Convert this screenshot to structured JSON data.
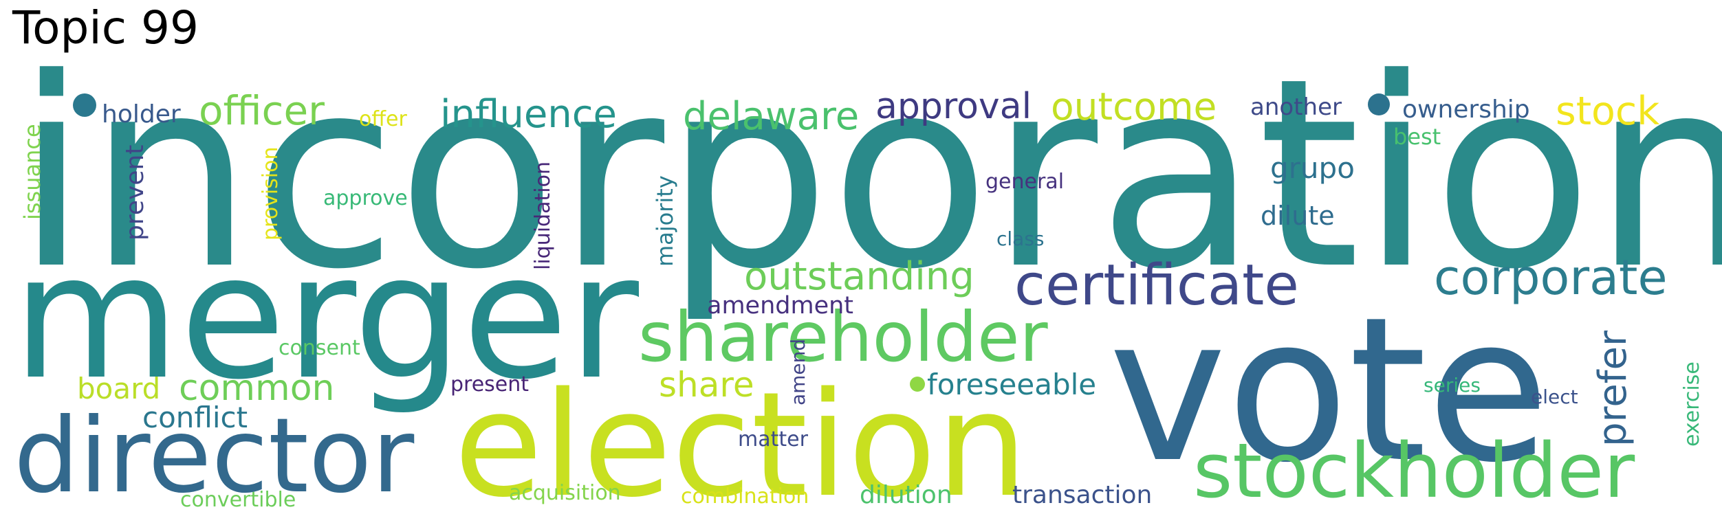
{
  "title": "Topic 99",
  "words": [
    {
      "text": "incorporation",
      "color": "#2a8a8a"
    },
    {
      "text": "merger",
      "color": "#25898b"
    },
    {
      "text": "vote",
      "color": "#31688e"
    },
    {
      "text": "election",
      "color": "#c8e020"
    },
    {
      "text": "director",
      "color": "#33698d"
    },
    {
      "text": "stockholder",
      "color": "#57c665"
    },
    {
      "text": "shareholder",
      "color": "#5ec962"
    },
    {
      "text": "certificate",
      "color": "#3f4889"
    },
    {
      "text": "corporate",
      "color": "#2c7d8e"
    },
    {
      "text": "outstanding",
      "color": "#6dcd59"
    },
    {
      "text": "officer",
      "color": "#7ad151"
    },
    {
      "text": "influence",
      "color": "#25948c"
    },
    {
      "text": "delaware",
      "color": "#4ac16d"
    },
    {
      "text": "approval",
      "color": "#3e3a81"
    },
    {
      "text": "outcome",
      "color": "#c2df23"
    },
    {
      "text": "stock",
      "color": "#f2e51d"
    },
    {
      "text": "another",
      "color": "#3e4a89"
    },
    {
      "text": "ownership",
      "color": "#365d8d"
    },
    {
      "text": "best",
      "color": "#48c16e"
    },
    {
      "text": "grupo",
      "color": "#2d718e"
    },
    {
      "text": "dilute",
      "color": "#2f6c8e"
    },
    {
      "text": "general",
      "color": "#46327e"
    },
    {
      "text": "class",
      "color": "#2c738e"
    },
    {
      "text": "amendment",
      "color": "#46307e"
    },
    {
      "text": "prefer",
      "color": "#33638d"
    },
    {
      "text": "exercise",
      "color": "#37b878"
    },
    {
      "text": "series",
      "color": "#35b779"
    },
    {
      "text": "elect",
      "color": "#3b528b"
    },
    {
      "text": "share",
      "color": "#bddf26"
    },
    {
      "text": "foreseeable",
      "color": "#26818e"
    },
    {
      "text": "present",
      "color": "#482475"
    },
    {
      "text": "amend",
      "color": "#414487"
    },
    {
      "text": "matter",
      "color": "#3e4c8a"
    },
    {
      "text": "common",
      "color": "#6ece58"
    },
    {
      "text": "board",
      "color": "#bade28"
    },
    {
      "text": "conflict",
      "color": "#2a778e"
    },
    {
      "text": "consent",
      "color": "#5ac864"
    },
    {
      "text": "holder",
      "color": "#38598c"
    },
    {
      "text": "offer",
      "color": "#dde318"
    },
    {
      "text": "issuance",
      "color": "#7fd34e"
    },
    {
      "text": "prevent",
      "color": "#404588"
    },
    {
      "text": "provision",
      "color": "#e5e419"
    },
    {
      "text": "approve",
      "color": "#38b977"
    },
    {
      "text": "liquidation",
      "color": "#482878"
    },
    {
      "text": "majority",
      "color": "#287c8e"
    },
    {
      "text": "acquisition",
      "color": "#84d44b"
    },
    {
      "text": "combination",
      "color": "#d8e219"
    },
    {
      "text": "dilution",
      "color": "#4cc26c"
    },
    {
      "text": "transaction",
      "color": "#3b528b"
    },
    {
      "text": "convertible",
      "color": "#6ccd5a"
    }
  ],
  "dots": [
    {
      "name": "dot-1",
      "color": "#2a788e"
    },
    {
      "name": "dot-2",
      "color": "#2c728e"
    },
    {
      "name": "dot-3",
      "color": "#8fd744"
    }
  ]
}
